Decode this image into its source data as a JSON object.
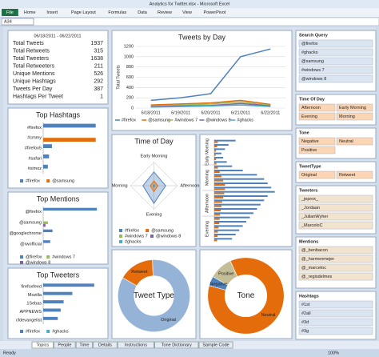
{
  "window": {
    "title": "Analytics for Twitter.xlsx - Microsoft Excel",
    "name_box": "A34"
  },
  "ribbon_tabs": [
    "File",
    "Home",
    "Insert",
    "Page Layout",
    "Formulas",
    "Data",
    "Review",
    "View",
    "PowerPivot"
  ],
  "stats": {
    "date_range": "06/18/2011 - 06/22/2011",
    "rows": [
      [
        "Total Tweets",
        1937
      ],
      [
        "Total Retweets",
        315
      ],
      [
        "Total Tweeters",
        1638
      ],
      [
        "Total Retweeters",
        211
      ],
      [
        "Unique Mentions",
        526
      ],
      [
        "Unique Hashtags",
        292
      ],
      [
        "Tweets Per Day",
        387
      ],
      [
        "Hashtags Per Tweet",
        1
      ]
    ]
  },
  "chart_data": [
    {
      "type": "line",
      "title": "Tweets by Day",
      "ylabel": "Total Tweets",
      "x": [
        "6/18/2011",
        "6/19/2011",
        "6/20/2011",
        "6/21/2011",
        "6/22/2011"
      ],
      "ylim": [
        0,
        1200
      ],
      "yticks": [
        0,
        200,
        400,
        600,
        800,
        1000,
        1200
      ],
      "grid": true,
      "series": [
        {
          "name": "#firefox",
          "color": "#4f81bd",
          "values": [
            150,
            200,
            280,
            1000,
            1150
          ]
        },
        {
          "name": "@samsung",
          "color": "#e46c0a",
          "values": [
            60,
            80,
            100,
            150,
            70
          ]
        },
        {
          "name": "#windows 7",
          "color": "#9bbb59",
          "values": [
            40,
            60,
            80,
            120,
            50
          ]
        },
        {
          "name": "@windows 8",
          "color": "#8064a2",
          "values": [
            30,
            40,
            50,
            90,
            40
          ]
        },
        {
          "name": "#ghacks",
          "color": "#4bacc6",
          "values": [
            20,
            30,
            40,
            60,
            30
          ]
        }
      ]
    },
    {
      "type": "hbar",
      "title": "Top Hashtags",
      "categories": [
        "#firefox",
        "#cmmy",
        "#firefox5",
        "#safari",
        "#ximoz"
      ],
      "xlim": [
        0,
        1000
      ],
      "series": [
        {
          "name": "#firefox",
          "color": "#4f81bd",
          "values": [
            900,
            0,
            150,
            100,
            80
          ]
        },
        {
          "name": "@samsung",
          "color": "#e46c0a",
          "values": [
            0,
            900,
            0,
            0,
            0
          ]
        }
      ]
    },
    {
      "type": "hbar",
      "title": "Top Mentions",
      "categories": [
        "@firefox",
        "@samsung",
        "@googlechrome",
        "@rwofficial"
      ],
      "xlim": [
        0,
        250
      ],
      "series": [
        {
          "name": "@firefox",
          "color": "#4f81bd",
          "values": [
            230,
            0,
            40,
            30
          ]
        },
        {
          "name": "#windows 7",
          "color": "#9bbb59",
          "values": [
            0,
            20,
            0,
            0
          ]
        },
        {
          "name": "@windows 8",
          "color": "#8064a2",
          "values": [
            0,
            10,
            0,
            0
          ]
        }
      ]
    },
    {
      "type": "hbar",
      "title": "Top Tweeters",
      "categories": [
        "firefoxfeed",
        "Mozilla",
        "1Sebas",
        "APPNEWS",
        "cfdevangelist"
      ],
      "xlim": [
        0,
        40
      ],
      "series": [
        {
          "name": "#firefox",
          "color": "#4f81bd",
          "values": [
            35,
            20,
            14,
            12,
            10
          ]
        },
        {
          "name": "#ghacks",
          "color": "#4bacc6",
          "values": [
            0,
            0,
            0,
            0,
            0
          ]
        }
      ]
    },
    {
      "type": "radar",
      "title": "Time of Day",
      "axes": [
        "Early Morning",
        "Afternoon",
        "Evening",
        "Morning"
      ],
      "rlim": [
        0,
        600
      ],
      "series": [
        {
          "name": "#firefox",
          "color": "#4f81bd",
          "values": [
            350,
            300,
            450,
            280
          ]
        },
        {
          "name": "@samsung",
          "color": "#e46c0a",
          "values": [
            120,
            100,
            150,
            90
          ]
        },
        {
          "name": "#windows 7",
          "color": "#9bbb59",
          "values": [
            40,
            30,
            50,
            30
          ]
        },
        {
          "name": "@windows 8",
          "color": "#8064a2",
          "values": [
            30,
            25,
            40,
            20
          ]
        },
        {
          "name": "#ghacks",
          "color": "#4bacc6",
          "values": [
            20,
            15,
            25,
            15
          ]
        }
      ]
    },
    {
      "type": "hbar",
      "group_labels": [
        "Early Morning",
        "Morning",
        "Afternoon",
        "Evening"
      ],
      "categories": [
        null,
        null,
        null,
        null,
        null,
        null,
        null,
        null,
        null,
        null,
        null,
        null,
        null,
        null,
        null,
        null,
        null,
        null,
        null,
        null,
        null,
        null,
        null,
        null
      ],
      "xlim": [
        0,
        200
      ],
      "series": [
        {
          "color": "#4f81bd",
          "values": [
            60,
            40,
            30,
            20,
            25,
            35,
            50,
            80,
            120,
            140,
            150,
            160,
            170,
            150,
            140,
            130,
            120,
            110,
            100,
            90,
            80,
            70,
            60,
            50
          ]
        },
        {
          "color": "#e46c0a",
          "values": [
            10,
            8,
            5,
            4,
            5,
            6,
            10,
            15,
            20,
            25,
            30,
            30,
            28,
            25,
            22,
            20,
            18,
            16,
            15,
            14,
            12,
            10,
            9,
            8
          ]
        }
      ]
    },
    {
      "type": "donut",
      "title": "Tweet Type",
      "categories": [
        "Retweet",
        "Original"
      ],
      "values": [
        16,
        84
      ],
      "colors": [
        "#e46c0a",
        "#95b3d7"
      ]
    },
    {
      "type": "donut",
      "title": "Tone",
      "categories": [
        "Positive",
        "Neutral",
        "Negative"
      ],
      "values": [
        10,
        86,
        4
      ],
      "colors": [
        "#c4bd97",
        "#e46c0a",
        "#4f81bd"
      ]
    }
  ],
  "slicers": [
    {
      "title": "Search Query",
      "items": [
        "@firefox",
        "#ghacks",
        "@samsung",
        "#windows 7",
        "@windows 8"
      ]
    },
    {
      "title": "Time Of Day",
      "items": [
        "Afternoon",
        "Early Morning",
        "Evening",
        "Morning"
      ]
    },
    {
      "title": "Tone",
      "items": [
        "Negative",
        "Neutral",
        "Positive"
      ]
    },
    {
      "title": "TweetType",
      "items": [
        "Original",
        "Retweet"
      ]
    },
    {
      "title": "Tweeters",
      "items": [
        "_jeprox_",
        "_Jordaan",
        "_JulianWyher",
        "_MarceloC"
      ]
    },
    {
      "title": "Mentions",
      "items": [
        "@_benbacon",
        "@_harmenmejer",
        "@_marceloc",
        "@_regisdelmes"
      ]
    },
    {
      "title": "Hashtags",
      "items": [
        "#1st",
        "#2all",
        "#3d",
        "#3g"
      ]
    }
  ],
  "sheet_tabs": [
    "Topics",
    "People",
    "Time",
    "Details",
    "Instructions",
    "Tone Dictionary",
    "Sample Code"
  ],
  "status": {
    "left": "Ready",
    "zoom": "100%"
  }
}
